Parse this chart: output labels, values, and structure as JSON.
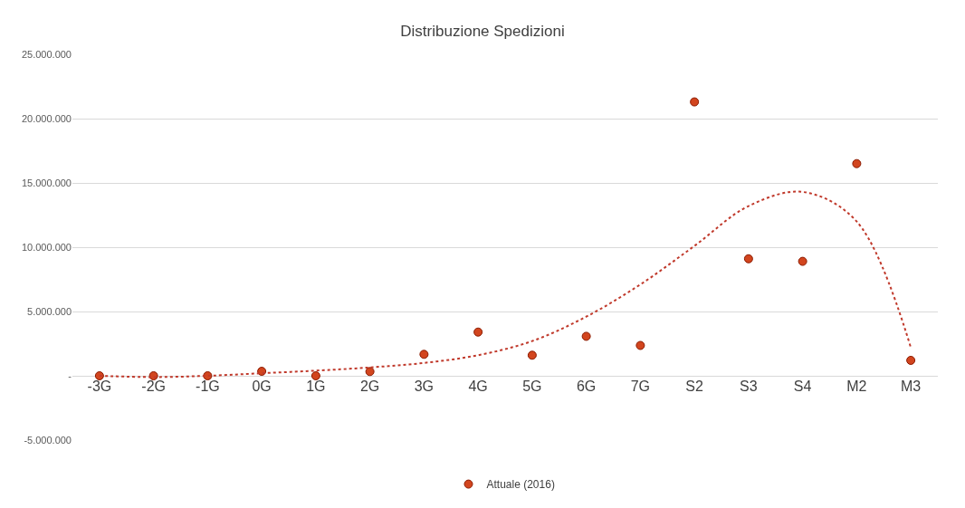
{
  "chart_data": {
    "type": "scatter",
    "title": "Distribuzione Spedizioni",
    "categories": [
      "-3G",
      "-2G",
      "-1G",
      "0G",
      "1G",
      "2G",
      "3G",
      "4G",
      "5G",
      "6G",
      "7G",
      "S2",
      "S3",
      "S4",
      "M2",
      "M3"
    ],
    "series": [
      {
        "name": "Attuale (2016)",
        "marker": "circle",
        "color": "#d2451e",
        "values": [
          0,
          0,
          0,
          350000,
          0,
          330000,
          1670000,
          3400000,
          1600000,
          3070000,
          2360000,
          21300000,
          9100000,
          8900000,
          16500000,
          1200000
        ]
      },
      {
        "type": "line",
        "marker": "none",
        "line_style": "dotted",
        "color": "#c0392b",
        "values": [
          0,
          -100000,
          0,
          200000,
          400000,
          650000,
          1000000,
          1600000,
          2700000,
          4600000,
          7100000,
          10100000,
          13200000,
          14300000,
          12000000,
          2200000
        ]
      }
    ],
    "ylim": [
      -5000000,
      25000000
    ],
    "yticks": [
      {
        "value": -5000000,
        "label": "-5.000.000"
      },
      {
        "value": 0,
        "label": "-"
      },
      {
        "value": 5000000,
        "label": "5.000.000"
      },
      {
        "value": 10000000,
        "label": "10.000.000"
      },
      {
        "value": 15000000,
        "label": "15.000.000"
      },
      {
        "value": 20000000,
        "label": "20.000.000"
      },
      {
        "value": 25000000,
        "label": "25.000.000"
      }
    ],
    "grid": "y",
    "legend": "bottom"
  }
}
